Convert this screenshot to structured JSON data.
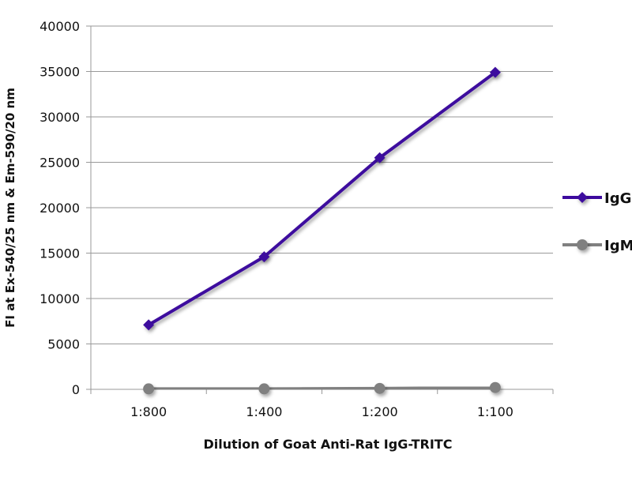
{
  "chart_data": {
    "type": "line",
    "title": "",
    "xlabel": "Dilution of Goat Anti-Rat IgG-TRITC",
    "ylabel": "FI at Ex-540/25 nm & Em-590/20 nm",
    "categories": [
      "1:800",
      "1:400",
      "1:200",
      "1:100"
    ],
    "ylim": [
      0,
      40000
    ],
    "yticks": [
      0,
      5000,
      10000,
      15000,
      20000,
      25000,
      30000,
      35000,
      40000
    ],
    "grid": true,
    "legend_position": "right",
    "series": [
      {
        "name": "IgG",
        "values": [
          7100,
          14600,
          25500,
          34900
        ],
        "color": "#3d0a9e",
        "marker": "diamond"
      },
      {
        "name": "IgM",
        "values": [
          50,
          50,
          100,
          200
        ],
        "color": "#808080",
        "marker": "circle"
      }
    ]
  }
}
